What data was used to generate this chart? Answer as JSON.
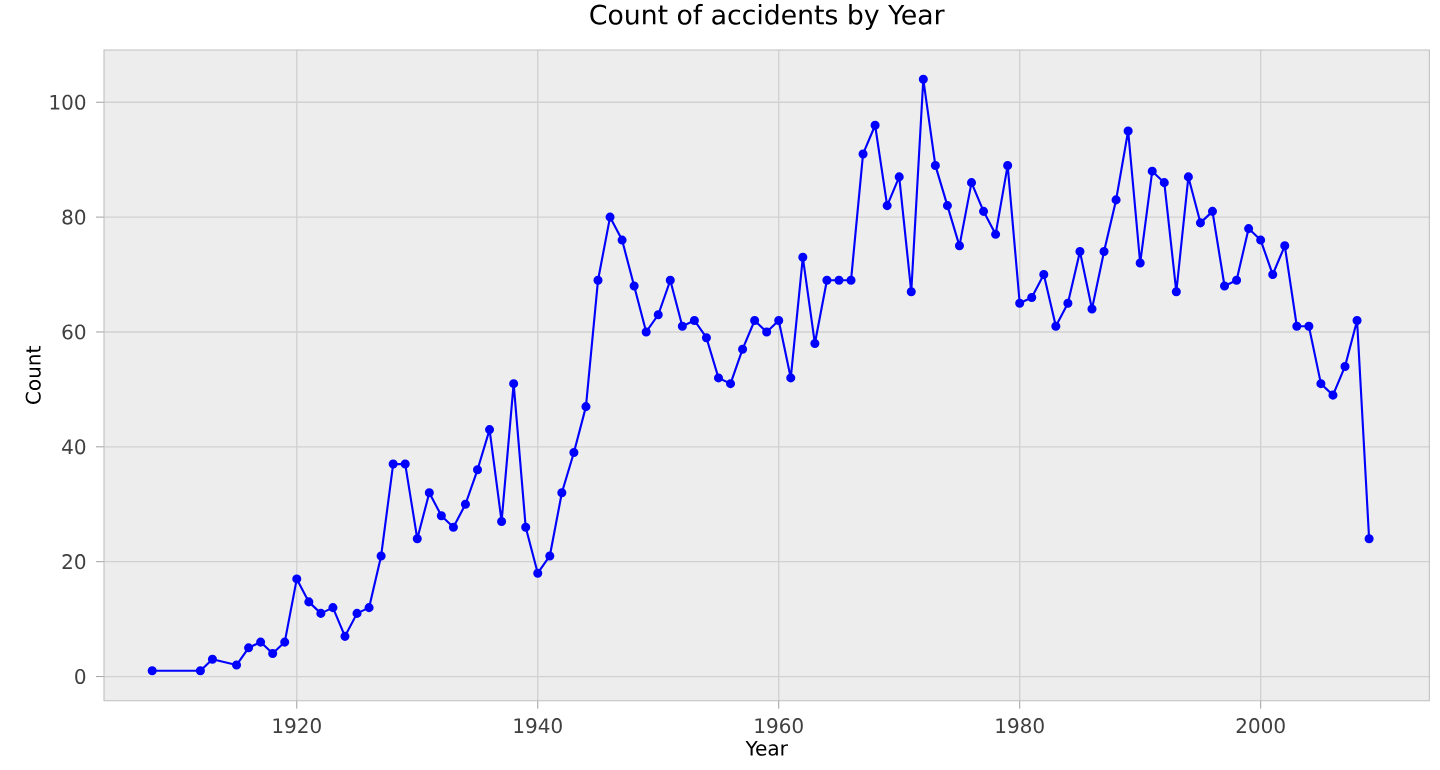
{
  "chart_data": {
    "type": "line",
    "title": "Count of accidents by Year",
    "xlabel": "Year",
    "ylabel": "Count",
    "x": [
      1908,
      1912,
      1913,
      1915,
      1916,
      1917,
      1918,
      1919,
      1920,
      1921,
      1922,
      1923,
      1924,
      1925,
      1926,
      1927,
      1928,
      1929,
      1930,
      1931,
      1932,
      1933,
      1934,
      1935,
      1936,
      1937,
      1938,
      1939,
      1940,
      1941,
      1942,
      1943,
      1944,
      1945,
      1946,
      1947,
      1948,
      1949,
      1950,
      1951,
      1952,
      1953,
      1954,
      1955,
      1956,
      1957,
      1958,
      1959,
      1960,
      1961,
      1962,
      1963,
      1964,
      1965,
      1966,
      1967,
      1968,
      1969,
      1970,
      1971,
      1972,
      1973,
      1974,
      1975,
      1976,
      1977,
      1978,
      1979,
      1980,
      1981,
      1982,
      1983,
      1984,
      1985,
      1986,
      1987,
      1988,
      1989,
      1990,
      1991,
      1992,
      1993,
      1994,
      1995,
      1996,
      1997,
      1998,
      1999,
      2000,
      2001,
      2002,
      2003,
      2004,
      2005,
      2006,
      2007,
      2008,
      2009
    ],
    "values": [
      1,
      1,
      3,
      2,
      5,
      6,
      4,
      6,
      17,
      13,
      11,
      12,
      7,
      11,
      12,
      21,
      37,
      37,
      24,
      32,
      28,
      26,
      30,
      36,
      43,
      27,
      51,
      26,
      18,
      21,
      32,
      39,
      47,
      69,
      80,
      76,
      68,
      60,
      63,
      69,
      61,
      62,
      59,
      52,
      51,
      57,
      62,
      60,
      62,
      52,
      73,
      58,
      69,
      69,
      69,
      91,
      96,
      82,
      87,
      67,
      104,
      89,
      82,
      75,
      86,
      81,
      77,
      89,
      65,
      66,
      70,
      61,
      65,
      74,
      64,
      74,
      83,
      95,
      72,
      88,
      86,
      67,
      87,
      79,
      81,
      68,
      69,
      78,
      76,
      70,
      75,
      61,
      61,
      51,
      49,
      54,
      62,
      24
    ],
    "color": "#0000ff",
    "marker": "circle",
    "line_style": "solid",
    "grid": true,
    "xlim": [
      1904,
      2014
    ],
    "ylim": [
      -4.2,
      109.1
    ],
    "xticks": [
      1920,
      1940,
      1960,
      1980,
      2000
    ],
    "yticks": [
      0,
      20,
      40,
      60,
      80,
      100
    ]
  }
}
